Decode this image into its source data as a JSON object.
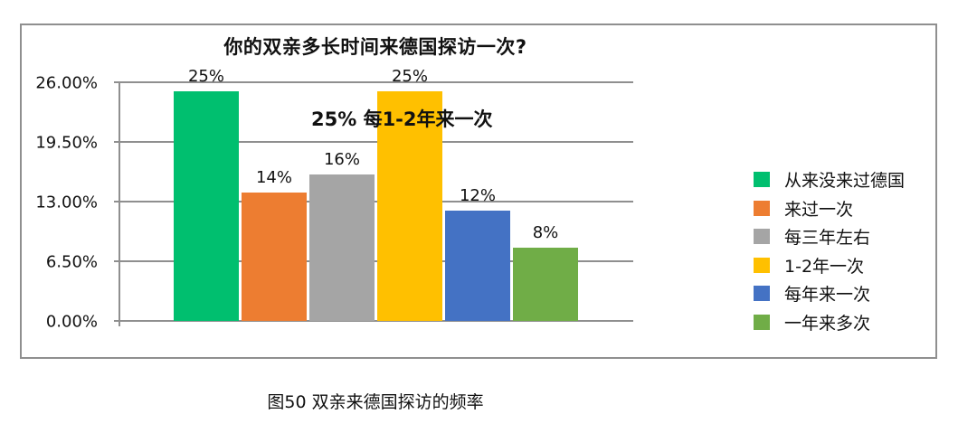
{
  "chart_title": "你的双亲多长时间来德国探访一次?",
  "annotation": "25% 每1-2年来一次",
  "caption": "图50 双亲来德国探访的频率",
  "y_ticks": [
    "26.00%",
    "19.50%",
    "13.00%",
    "6.50%",
    "0.00%"
  ],
  "bars": [
    {
      "label": "25%",
      "name": "从来没来过德国",
      "value": 25,
      "color": "#00BF6F"
    },
    {
      "label": "14%",
      "name": "来过一次",
      "value": 14,
      "color": "#ED7D31"
    },
    {
      "label": "16%",
      "name": "每三年左右",
      "value": 16,
      "color": "#A5A5A5"
    },
    {
      "label": "25%",
      "name": "1-2年一次",
      "value": 25,
      "color": "#FFC000"
    },
    {
      "label": "12%",
      "name": "每年来一次",
      "value": 12,
      "color": "#4472C4"
    },
    {
      "label": "8%",
      "name": "一年来多次",
      "value": 8,
      "color": "#70AD47"
    }
  ],
  "legend": [
    {
      "label": "从来没来过德国",
      "color": "#00BF6F"
    },
    {
      "label": "来过一次",
      "color": "#ED7D31"
    },
    {
      "label": "每三年左右",
      "color": "#A5A5A5"
    },
    {
      "label": "1-2年一次",
      "color": "#FFC000"
    },
    {
      "label": "每年来一次",
      "color": "#4472C4"
    },
    {
      "label": "一年来多次",
      "color": "#70AD47"
    }
  ],
  "chart_data": {
    "type": "bar",
    "title": "你的双亲多长时间来德国探访一次?",
    "categories": [
      "从来没来过德国",
      "来过一次",
      "每三年左右",
      "1-2年一次",
      "每年来一次",
      "一年来多次"
    ],
    "values": [
      25,
      14,
      16,
      25,
      12,
      8
    ],
    "data_labels": [
      "25%",
      "14%",
      "16%",
      "25%",
      "12%",
      "8%"
    ],
    "colors": [
      "#00BF6F",
      "#ED7D31",
      "#A5A5A5",
      "#FFC000",
      "#4472C4",
      "#70AD47"
    ],
    "xlabel": "",
    "ylabel": "",
    "ylim": [
      0,
      26
    ],
    "y_tick_labels": [
      "0.00%",
      "6.50%",
      "13.00%",
      "19.50%",
      "26.00%"
    ],
    "grid": true,
    "legend_position": "right",
    "annotations": [
      "25% 每1-2年来一次"
    ],
    "caption": "图50 双亲来德国探访的频率"
  }
}
